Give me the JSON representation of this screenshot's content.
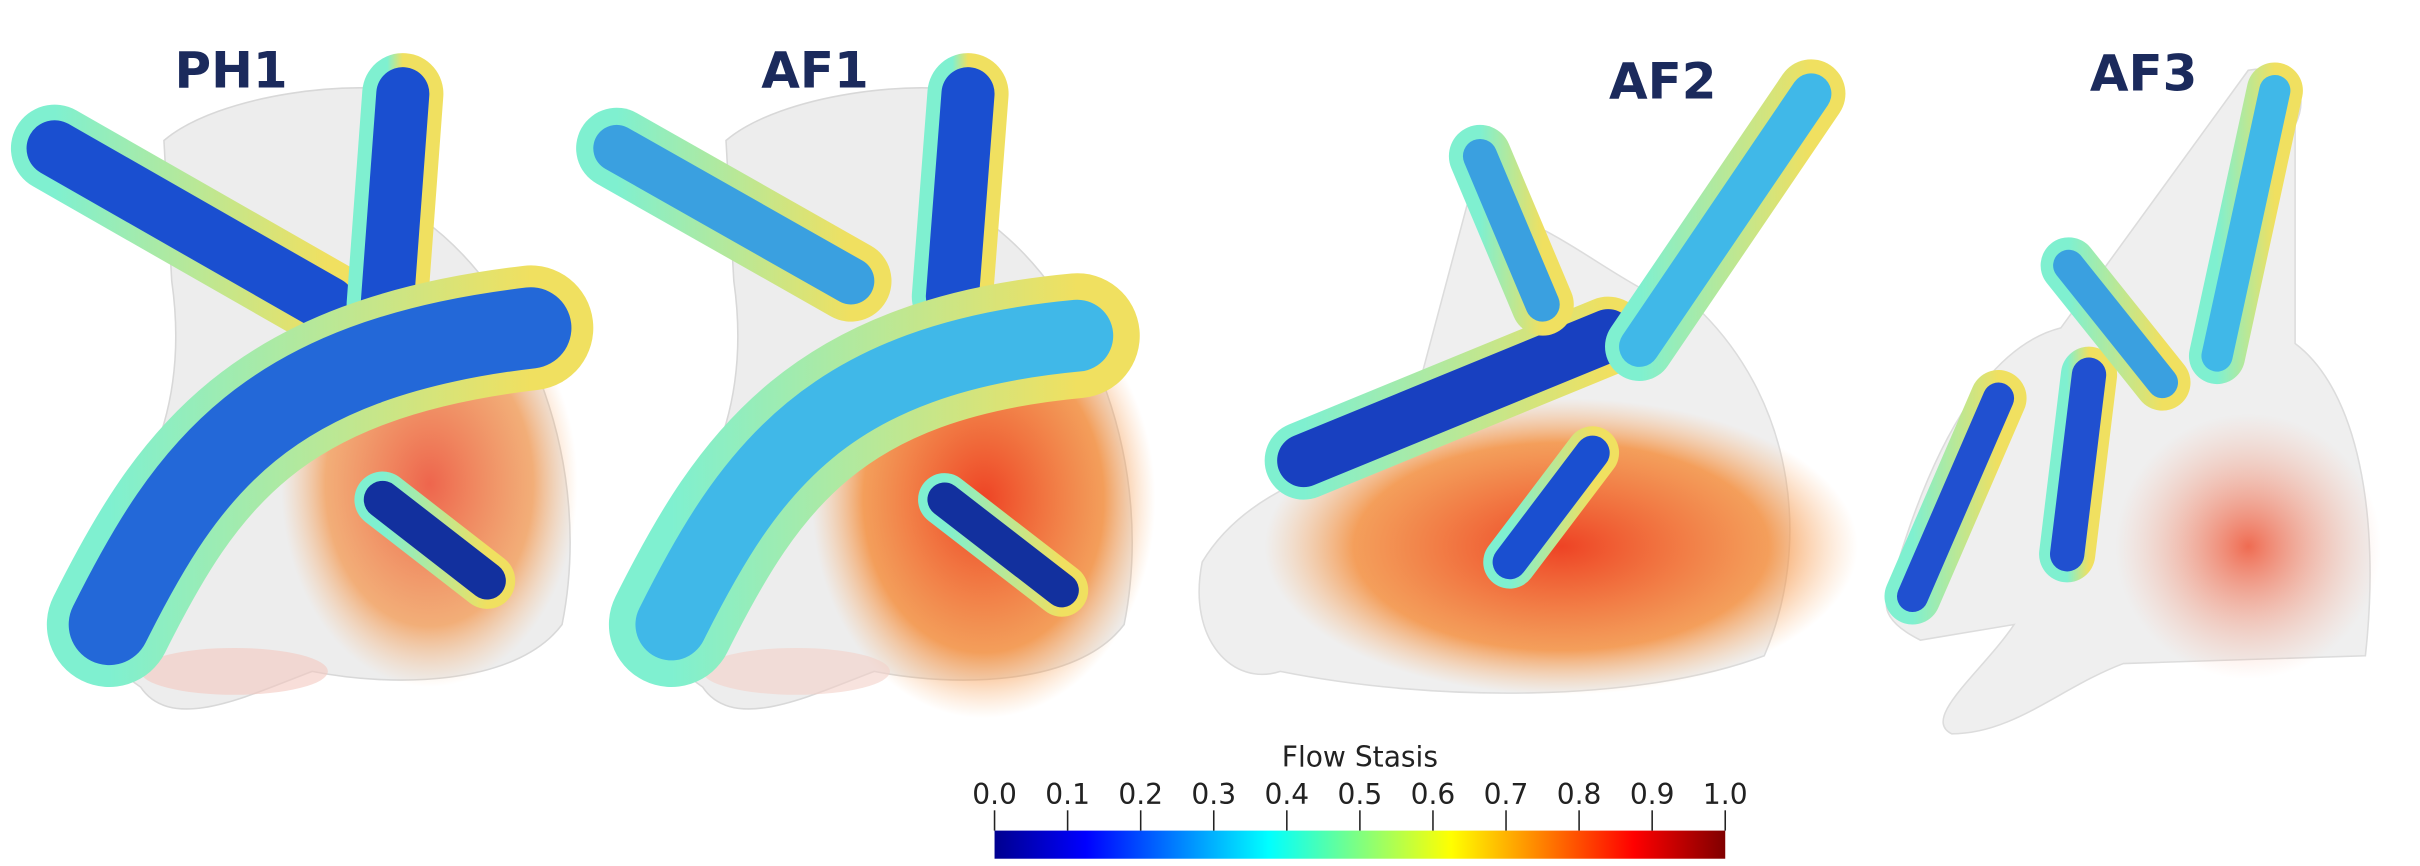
{
  "panels": [
    {
      "label": "PH1"
    },
    {
      "label": "AF1"
    },
    {
      "label": "AF2"
    },
    {
      "label": "AF3"
    }
  ],
  "colorbar": {
    "title": "Flow Stasis",
    "lim": [
      0,
      1
    ],
    "ticks": [
      {
        "value": 0,
        "label": "0.0"
      },
      0.1,
      0.2,
      0.3,
      0.4,
      0.5,
      0.6,
      0.7,
      0.8,
      0.9,
      {
        "value": 1,
        "label": "1.0"
      }
    ],
    "colormap": [
      "#00008f",
      "#0000ff",
      "#0080ff",
      "#00ffff",
      "#80ff80",
      "#ffff00",
      "#ff8000",
      "#ff0000",
      "#800000"
    ]
  }
}
